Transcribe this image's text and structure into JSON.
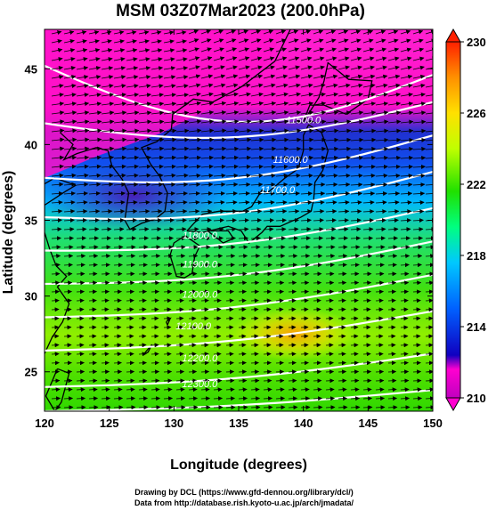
{
  "chart_data": {
    "type": "heatmap",
    "title": "MSM 03Z07Mar2023 (200.0hPa)",
    "xlabel": "Longitude (degrees)",
    "ylabel": "Latitude  (degrees)",
    "xlim": [
      120,
      150
    ],
    "ylim": [
      22.4,
      47.6
    ],
    "xticks": [
      "120",
      "125",
      "130",
      "135",
      "140",
      "145",
      "150"
    ],
    "yticks": [
      "25",
      "30",
      "35",
      "40",
      "45"
    ],
    "grid": false,
    "colorbar": {
      "range": [
        210,
        230
      ],
      "ticks": [
        "210",
        "214",
        "218",
        "222",
        "226",
        "230"
      ],
      "colors": [
        "#c000c0",
        "#ff00d0",
        "#0000d0",
        "#0060ff",
        "#00c8ff",
        "#00ff60",
        "#30e000",
        "#c0ff00",
        "#ffff00",
        "#ffa000",
        "#ff2000"
      ]
    },
    "contours": [
      {
        "label": "11500.0",
        "lon": 140,
        "lat": 41.4
      },
      {
        "label": "11600.0",
        "lon": 139,
        "lat": 38.8
      },
      {
        "label": "11700.0",
        "lon": 138,
        "lat": 36.8
      },
      {
        "label": "11800.0",
        "lon": 132,
        "lat": 33.8
      },
      {
        "label": "11900.0",
        "lon": 132,
        "lat": 31.9
      },
      {
        "label": "12000.0",
        "lon": 132,
        "lat": 29.9
      },
      {
        "label": "12100.0",
        "lon": 131.5,
        "lat": 27.8
      },
      {
        "label": "12200.0",
        "lon": 132,
        "lat": 25.7
      },
      {
        "label": "12300.0",
        "lon": 132,
        "lat": 24.0
      }
    ],
    "contour_lines": [
      {
        "lat_west": 45.2,
        "lat_east": 44.6,
        "bend": 3.4
      },
      {
        "lat_west": 41.4,
        "lat_east": 42.8,
        "bend": 1.6
      },
      {
        "lat_west": 37.8,
        "lat_east": 40.6,
        "bend": 1.4
      },
      {
        "lat_west": 35.2,
        "lat_east": 38.2,
        "bend": 1.2
      },
      {
        "lat_west": 33.0,
        "lat_east": 35.8,
        "bend": 0.9
      },
      {
        "lat_west": 30.8,
        "lat_east": 33.6,
        "bend": 0.8
      },
      {
        "lat_west": 28.6,
        "lat_east": 31.4,
        "bend": 0.7
      },
      {
        "lat_west": 26.4,
        "lat_east": 29.0,
        "bend": 0.6
      },
      {
        "lat_west": 24.0,
        "lat_east": 26.2,
        "bend": 0.5
      },
      {
        "lat_west": 22.4,
        "lat_east": 23.8,
        "bend": 0.3
      }
    ]
  },
  "footer": {
    "line1": "Drawing by DCL (https://www.gfd-dennou.org/library/dcl/)",
    "line2": "Data from http://database.rish.kyoto-u.ac.jp/arch/jmadata/"
  }
}
